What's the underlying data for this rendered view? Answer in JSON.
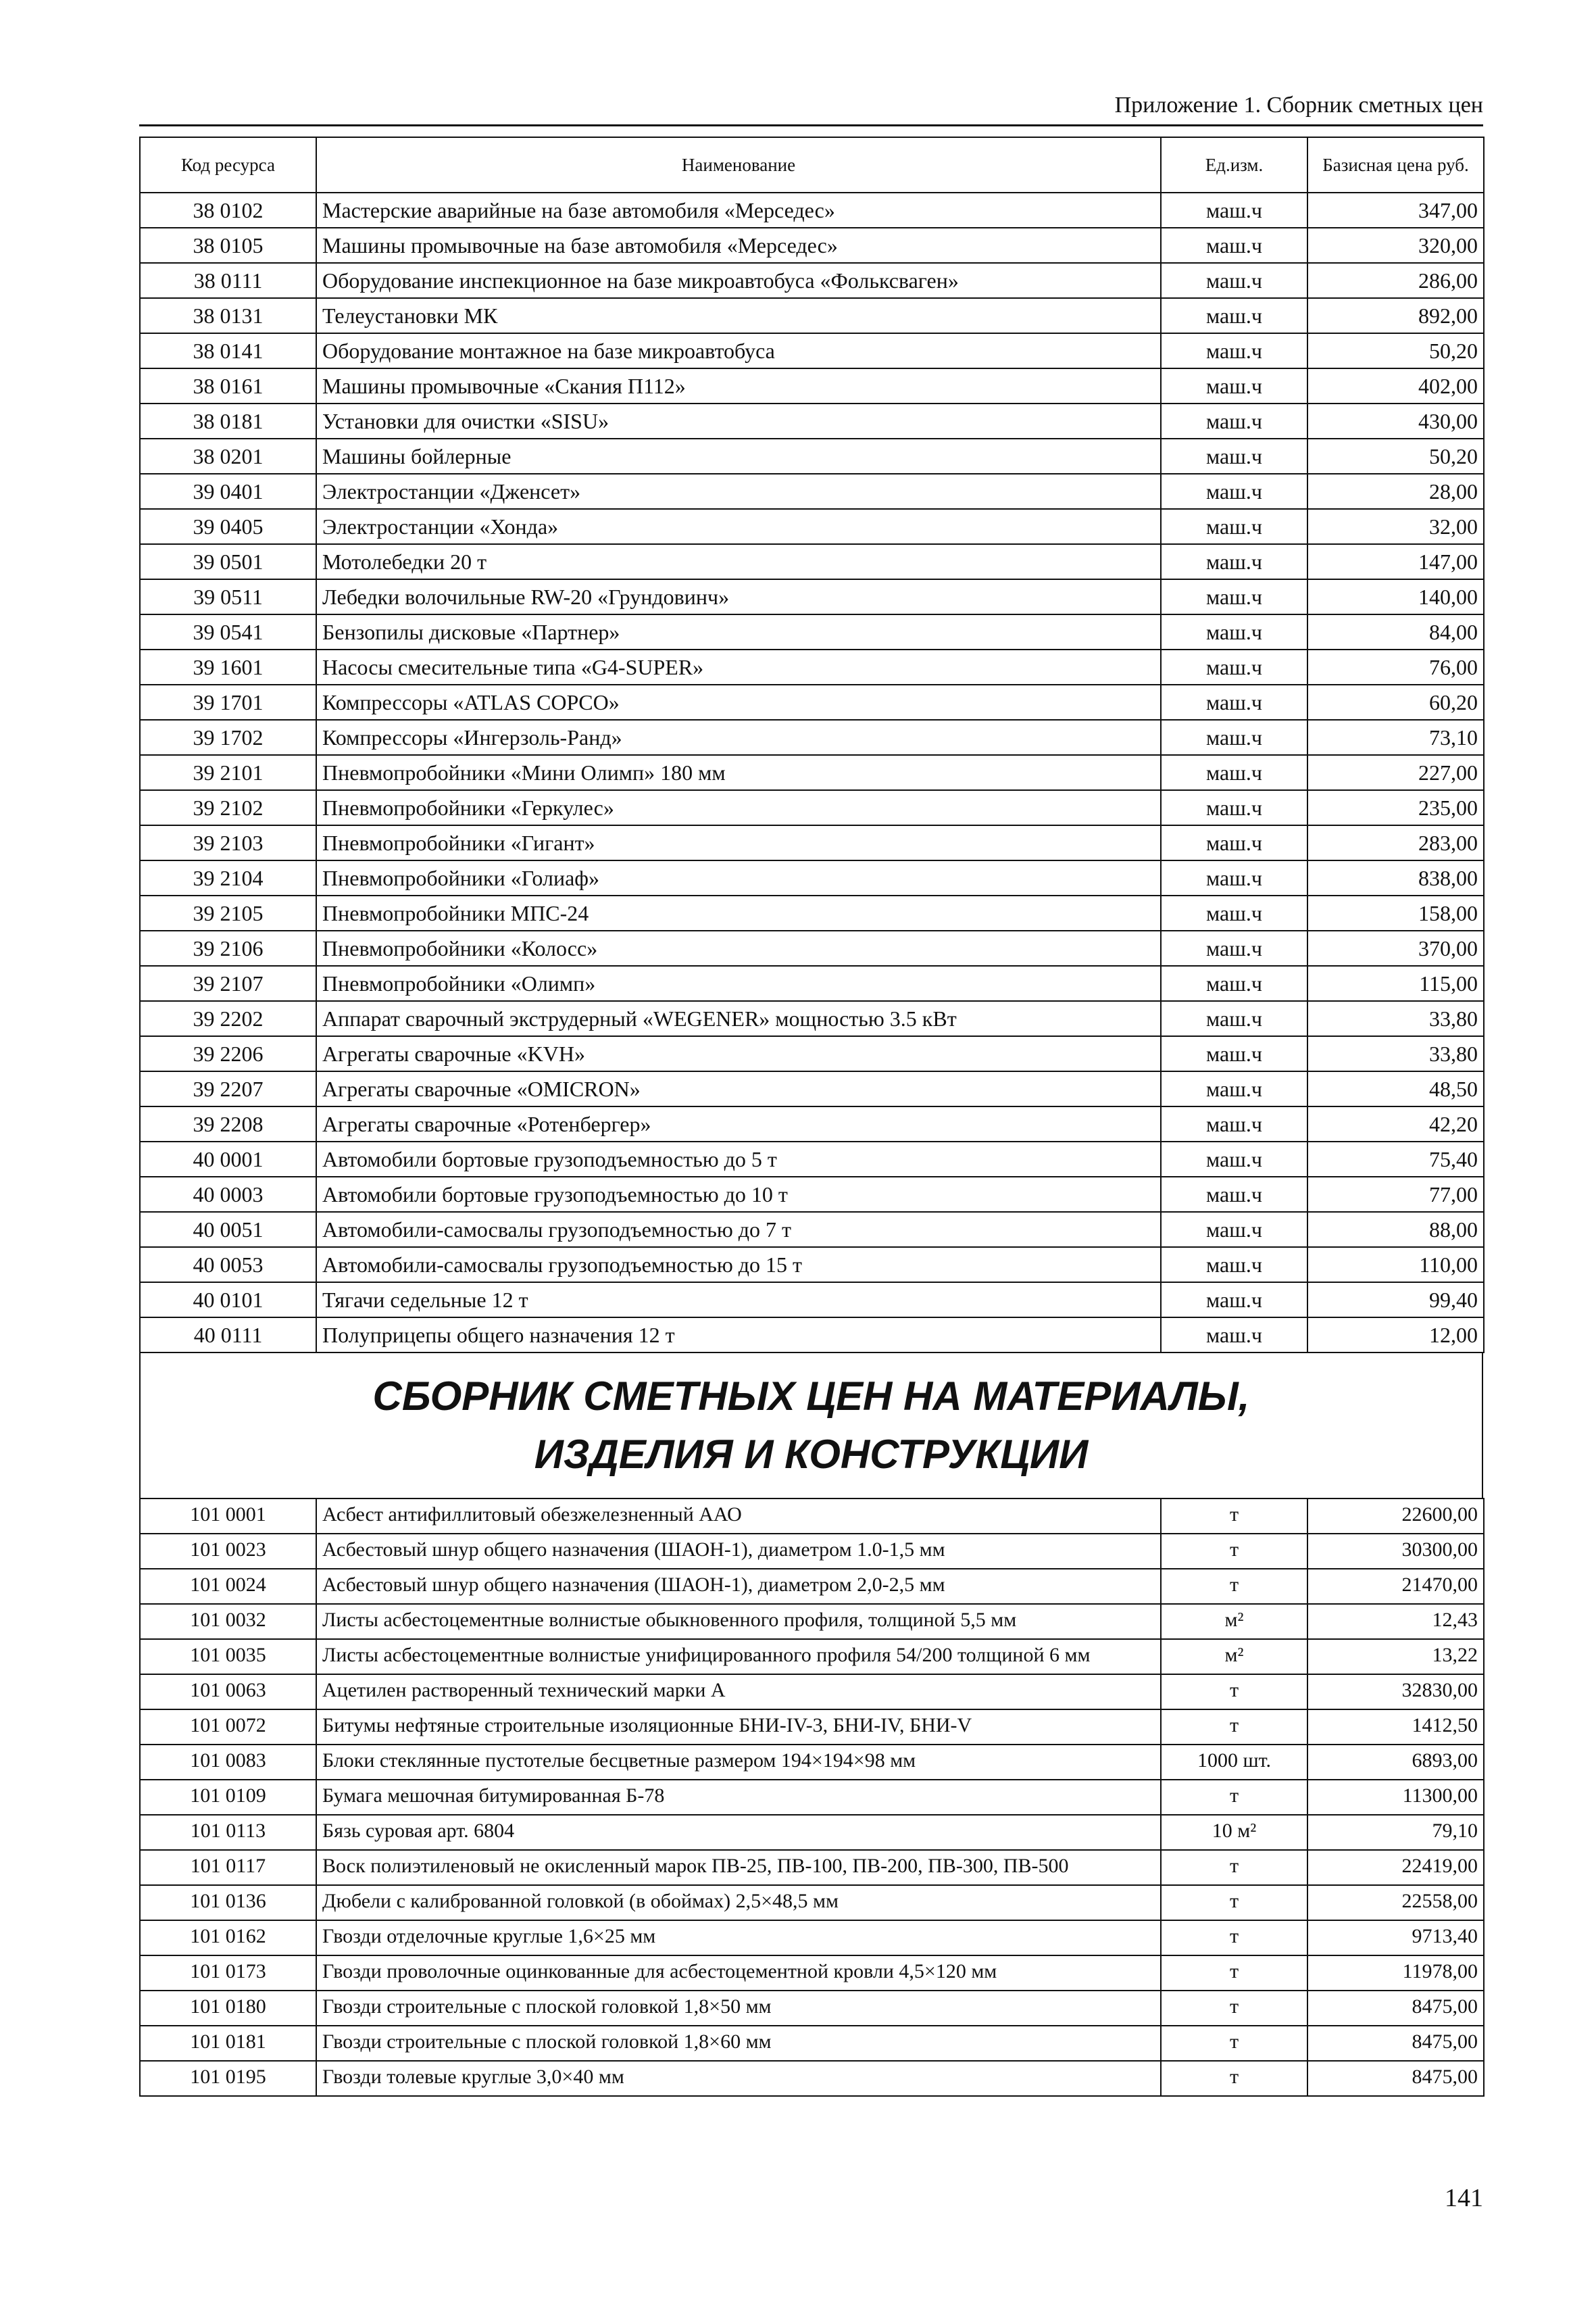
{
  "header": {
    "title": "Приложение 1. Сборник сметных цен"
  },
  "table": {
    "columns": [
      "Код ресурса",
      "Наименование",
      "Ед.изм.",
      "Базисная цена руб."
    ],
    "rows": [
      [
        "38 0102",
        "Мастерские аварийные на базе автомобиля «Мерседес»",
        "маш.ч",
        "347,00"
      ],
      [
        "38 0105",
        "Машины промывочные на базе автомобиля «Мерседес»",
        "маш.ч",
        "320,00"
      ],
      [
        "38 0111",
        "Оборудование инспекционное на базе микроавтобуса «Фольксваген»",
        "маш.ч",
        "286,00"
      ],
      [
        "38 0131",
        "Телеустановки МК",
        "маш.ч",
        "892,00"
      ],
      [
        "38 0141",
        "Оборудование монтажное на базе микроавтобуса",
        "маш.ч",
        "50,20"
      ],
      [
        "38 0161",
        "Машины промывочные «Скания П112»",
        "маш.ч",
        "402,00"
      ],
      [
        "38 0181",
        "Установки для очистки «SISU»",
        "маш.ч",
        "430,00"
      ],
      [
        "38 0201",
        "Машины бойлерные",
        "маш.ч",
        "50,20"
      ],
      [
        "39 0401",
        "Электростанции «Дженсет»",
        "маш.ч",
        "28,00"
      ],
      [
        "39 0405",
        "Электростанции «Хонда»",
        "маш.ч",
        "32,00"
      ],
      [
        "39 0501",
        "Мотолебедки 20 т",
        "маш.ч",
        "147,00"
      ],
      [
        "39 0511",
        "Лебедки волочильные RW-20 «Грундовинч»",
        "маш.ч",
        "140,00"
      ],
      [
        "39 0541",
        "Бензопилы дисковые «Партнер»",
        "маш.ч",
        "84,00"
      ],
      [
        "39 1601",
        "Насосы смесительные типа «G4-SUPER»",
        "маш.ч",
        "76,00"
      ],
      [
        "39 1701",
        "Компрессоры «ATLAS COPCO»",
        "маш.ч",
        "60,20"
      ],
      [
        "39 1702",
        "Компрессоры «Ингерзоль-Ранд»",
        "маш.ч",
        "73,10"
      ],
      [
        "39 2101",
        "Пневмопробойники «Мини Олимп» 180 мм",
        "маш.ч",
        "227,00"
      ],
      [
        "39 2102",
        "Пневмопробойники «Геркулес»",
        "маш.ч",
        "235,00"
      ],
      [
        "39 2103",
        "Пневмопробойники «Гигант»",
        "маш.ч",
        "283,00"
      ],
      [
        "39 2104",
        "Пневмопробойники «Голиаф»",
        "маш.ч",
        "838,00"
      ],
      [
        "39 2105",
        "Пневмопробойники МПС-24",
        "маш.ч",
        "158,00"
      ],
      [
        "39 2106",
        "Пневмопробойники «Колосс»",
        "маш.ч",
        "370,00"
      ],
      [
        "39 2107",
        "Пневмопробойники «Олимп»",
        "маш.ч",
        "115,00"
      ],
      [
        "39 2202",
        "Аппарат сварочный экструдерный «WEGENER» мощностью 3.5 кВт",
        "маш.ч",
        "33,80"
      ],
      [
        "39 2206",
        "Агрегаты сварочные «KVH»",
        "маш.ч",
        "33,80"
      ],
      [
        "39 2207",
        "Агрегаты сварочные «OMICRON»",
        "маш.ч",
        "48,50"
      ],
      [
        "39 2208",
        "Агрегаты сварочные «Ротенбергер»",
        "маш.ч",
        "42,20"
      ],
      [
        "40 0001",
        "Автомобили бортовые грузоподъемностью до 5 т",
        "маш.ч",
        "75,40"
      ],
      [
        "40 0003",
        "Автомобили бортовые грузоподъемностью до 10 т",
        "маш.ч",
        "77,00"
      ],
      [
        "40 0051",
        "Автомобили-самосвалы грузоподъемностью до 7 т",
        "маш.ч",
        "88,00"
      ],
      [
        "40 0053",
        "Автомобили-самосвалы грузоподъемностью до 15 т",
        "маш.ч",
        "110,00"
      ],
      [
        "40 0101",
        "Тягачи седельные 12 т",
        "маш.ч",
        "99,40"
      ],
      [
        "40 0111",
        "Полуприцепы общего назначения 12 т",
        "маш.ч",
        "12,00"
      ]
    ]
  },
  "section": {
    "title": [
      "СБОРНИК СМЕТНЫХ ЦЕН НА МАТЕРИАЛЫ,",
      "ИЗДЕЛИЯ И КОНСТРУКЦИИ"
    ]
  },
  "table2": {
    "rows": [
      [
        "101 0001",
        "Асбест антифиллитовый обезжелезненный ААО",
        "т",
        "22600,00"
      ],
      [
        "101 0023",
        "Асбестовый шнур общего назначения (ШАОН-1), диаметром 1.0-1,5 мм",
        "т",
        "30300,00"
      ],
      [
        "101 0024",
        "Асбестовый шнур общего назначения (ШАОН-1), диаметром 2,0-2,5 мм",
        "т",
        "21470,00"
      ],
      [
        "101 0032",
        "Листы асбестоцементные волнистые обыкновенного профиля, толщиной 5,5 мм",
        "м²",
        "12,43"
      ],
      [
        "101 0035",
        "Листы асбестоцементные волнистые унифицированного профиля 54/200 толщиной 6 мм",
        "м²",
        "13,22"
      ],
      [
        "101 0063",
        "Ацетилен растворенный технический марки А",
        "т",
        "32830,00"
      ],
      [
        "101 0072",
        "Битумы нефтяные строительные изоляционные БНИ-IV-3, БНИ-IV, БНИ-V",
        "т",
        "1412,50"
      ],
      [
        "101 0083",
        "Блоки стеклянные пустотелые бесцветные размером 194×194×98 мм",
        "1000 шт.",
        "6893,00"
      ],
      [
        "101 0109",
        "Бумага мешочная битумированная Б-78",
        "т",
        "11300,00"
      ],
      [
        "101 0113",
        "Бязь суровая арт. 6804",
        "10 м²",
        "79,10"
      ],
      [
        "101 0117",
        "Воск полиэтиленовый не окисленный марок ПВ-25, ПВ-100, ПВ-200, ПВ-300, ПВ-500",
        "т",
        "22419,00"
      ],
      [
        "101 0136",
        "Дюбели с калиброванной головкой (в обоймах) 2,5×48,5 мм",
        "т",
        "22558,00"
      ],
      [
        "101 0162",
        "Гвозди отделочные круглые 1,6×25 мм",
        "т",
        "9713,40"
      ],
      [
        "101 0173",
        "Гвозди проволочные оцинкованные для асбестоцементной кровли 4,5×120 мм",
        "т",
        "11978,00"
      ],
      [
        "101 0180",
        "Гвозди строительные с плоской головкой 1,8×50 мм",
        "т",
        "8475,00"
      ],
      [
        "101 0181",
        "Гвозди строительные с плоской головкой 1,8×60 мм",
        "т",
        "8475,00"
      ],
      [
        "101 0195",
        "Гвозди толевые круглые 3,0×40 мм",
        "т",
        "8475,00"
      ]
    ]
  },
  "page_number": "141"
}
